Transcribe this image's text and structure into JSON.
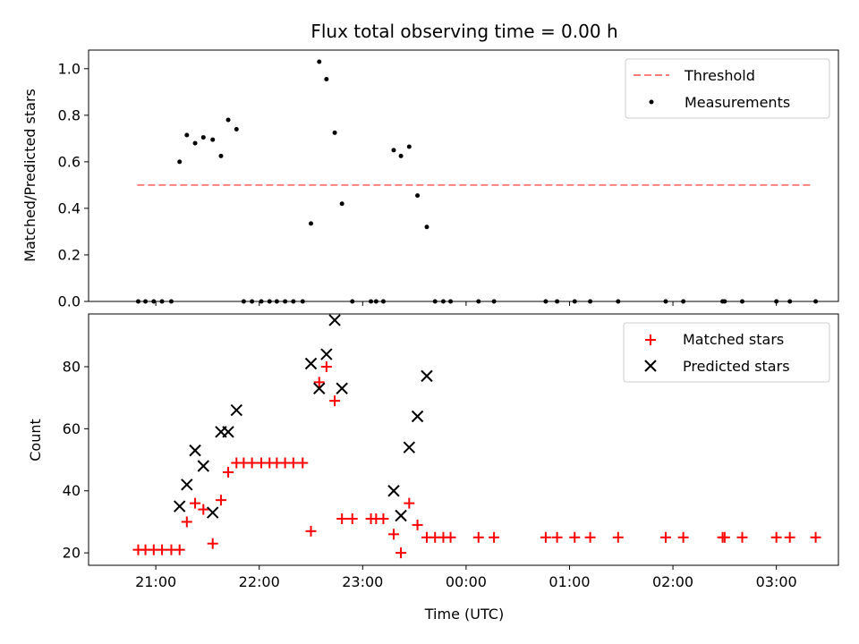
{
  "chart_data": [
    {
      "type": "scatter",
      "title": "Flux total observing time = 0.00 h",
      "xlabel": "",
      "ylabel": "Matched/Predicted stars",
      "xlim_hours": [
        20.35,
        27.6
      ],
      "ylim": [
        0,
        1.08
      ],
      "y_ticks": [
        0.0,
        0.2,
        0.4,
        0.6,
        0.8,
        1.0
      ],
      "y_tick_labels": [
        "0.0",
        "0.2",
        "0.4",
        "0.6",
        "0.8",
        "1.0"
      ],
      "legend_position": "top-right",
      "series": [
        {
          "name": "Threshold",
          "kind": "dashed-line",
          "color": "#ff7f7f",
          "x": [
            20.82,
            27.35
          ],
          "y": [
            0.5,
            0.5
          ]
        },
        {
          "name": "Measurements",
          "kind": "dot",
          "color": "#000000",
          "x": [
            20.83,
            20.9,
            20.98,
            21.06,
            21.15,
            21.23,
            21.3,
            21.38,
            21.46,
            21.55,
            21.63,
            21.7,
            21.78,
            21.85,
            21.93,
            22.02,
            22.1,
            22.17,
            22.25,
            22.33,
            22.42,
            22.5,
            22.58,
            22.65,
            22.73,
            22.8,
            22.9,
            23.08,
            23.13,
            23.2,
            23.3,
            23.37,
            23.45,
            23.53,
            23.62,
            23.7,
            23.78,
            23.85,
            24.12,
            24.27,
            24.77,
            24.88,
            25.05,
            25.2,
            25.47,
            25.93,
            26.1,
            26.48,
            26.5,
            26.67,
            27.0,
            27.13,
            27.38
          ],
          "y": [
            0.0,
            0.0,
            0.0,
            0.0,
            0.0,
            0.6,
            0.715,
            0.68,
            0.705,
            0.695,
            0.625,
            0.78,
            0.74,
            0.0,
            0.0,
            0.0,
            0.0,
            0.0,
            0.0,
            0.0,
            0.0,
            0.335,
            1.03,
            0.955,
            0.725,
            0.42,
            0.0,
            0.0,
            0.0,
            0.0,
            0.65,
            0.625,
            0.665,
            0.455,
            0.32,
            0.0,
            0.0,
            0.0,
            0.0,
            0.0,
            0.0,
            0.0,
            0.0,
            0.0,
            0.0,
            0.0,
            0.0,
            0.0,
            0.0,
            0.0,
            0.0,
            0.0,
            0.0
          ]
        }
      ]
    },
    {
      "type": "scatter",
      "title": "",
      "xlabel": "Time (UTC)",
      "ylabel": "Count",
      "xlim_hours": [
        20.35,
        27.6
      ],
      "ylim": [
        16,
        97
      ],
      "y_ticks": [
        20,
        40,
        60,
        80
      ],
      "y_tick_labels": [
        "20",
        "40",
        "60",
        "80"
      ],
      "x_ticks_hours": [
        21,
        22,
        23,
        24,
        25,
        26,
        27
      ],
      "x_tick_labels": [
        "21:00",
        "22:00",
        "23:00",
        "00:00",
        "01:00",
        "02:00",
        "03:00"
      ],
      "legend_position": "top-right",
      "series": [
        {
          "name": "Matched stars",
          "kind": "plus",
          "color": "#ff0000",
          "x": [
            20.83,
            20.9,
            20.98,
            21.06,
            21.15,
            21.23,
            21.3,
            21.38,
            21.46,
            21.55,
            21.63,
            21.7,
            21.78,
            21.85,
            21.93,
            22.02,
            22.1,
            22.17,
            22.25,
            22.33,
            22.42,
            22.5,
            22.58,
            22.65,
            22.73,
            22.8,
            22.9,
            23.08,
            23.13,
            23.2,
            23.3,
            23.37,
            23.45,
            23.53,
            23.62,
            23.7,
            23.78,
            23.85,
            24.12,
            24.27,
            24.77,
            24.88,
            25.05,
            25.2,
            25.47,
            25.93,
            26.1,
            26.48,
            26.5,
            26.67,
            27.0,
            27.13,
            27.38
          ],
          "y": [
            21,
            21,
            21,
            21,
            21,
            21,
            30,
            36,
            34,
            23,
            37,
            46,
            49,
            49,
            49,
            49,
            49,
            49,
            49,
            49,
            49,
            27,
            75,
            80,
            69,
            31,
            31,
            31,
            31,
            31,
            26,
            20,
            36,
            29,
            25,
            25,
            25,
            25,
            25,
            25,
            25,
            25,
            25,
            25,
            25,
            25,
            25,
            25,
            25,
            25,
            25,
            25,
            25
          ]
        },
        {
          "name": "Predicted stars",
          "kind": "x",
          "color": "#000000",
          "x": [
            21.23,
            21.3,
            21.38,
            21.46,
            21.55,
            21.63,
            21.7,
            21.78,
            22.5,
            22.58,
            22.65,
            22.73,
            22.8,
            23.3,
            23.37,
            23.45,
            23.53,
            23.62
          ],
          "y": [
            35,
            42,
            53,
            48,
            33,
            59,
            59,
            66,
            81,
            73,
            84,
            95,
            73,
            40,
            32,
            54,
            64,
            77
          ]
        }
      ]
    }
  ]
}
